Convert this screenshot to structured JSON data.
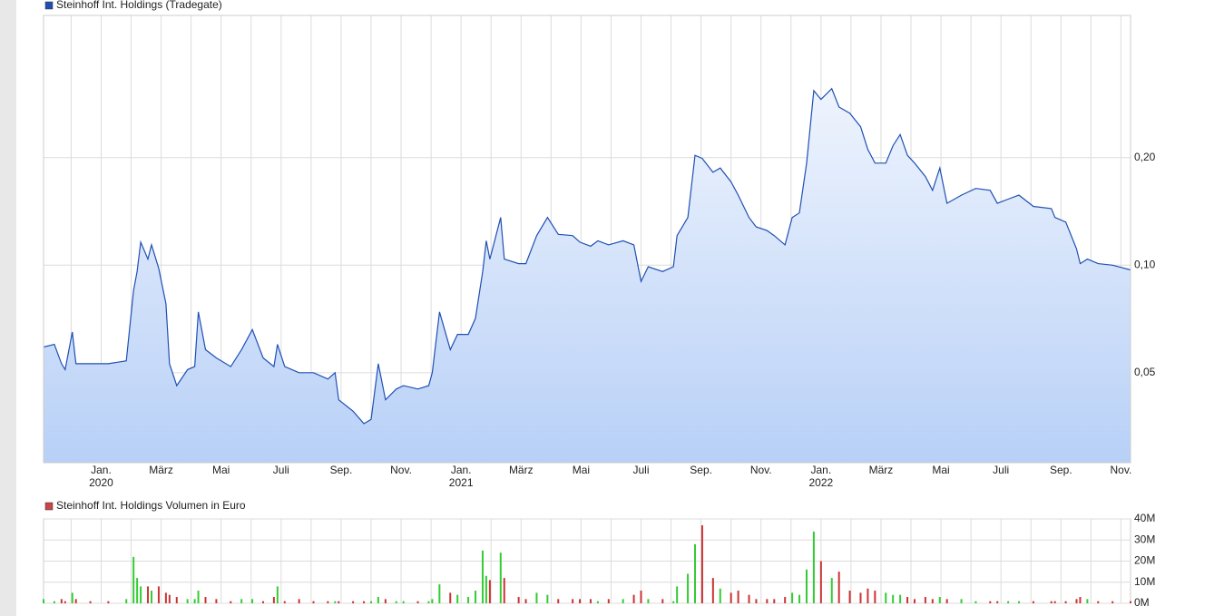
{
  "chart_data": [
    {
      "type": "area",
      "title": "Steinhoff Int. Holdings (Tradegate)",
      "log_scale": true,
      "grid": true,
      "series": [
        {
          "name": "Steinhoff Int. Holdings (Tradegate)",
          "color": "#1f4fb4",
          "fill_top": "#eef4fd",
          "fill_bottom": "#b8d0f7",
          "values": [
            0.059,
            0.06,
            0.053,
            0.051,
            0.065,
            0.053,
            0.053,
            0.053,
            0.054,
            0.085,
            0.096,
            0.116,
            0.104,
            0.114,
            0.098,
            0.078,
            0.053,
            0.046,
            0.051,
            0.052,
            0.074,
            0.058,
            0.055,
            0.052,
            0.058,
            0.066,
            0.055,
            0.052,
            0.06,
            0.052,
            0.05,
            0.05,
            0.048,
            0.05,
            0.042,
            0.039,
            0.036,
            0.037,
            0.053,
            0.042,
            0.045,
            0.046,
            0.045,
            0.046,
            0.05,
            0.074,
            0.058,
            0.064,
            0.064,
            0.071,
            0.096,
            0.117,
            0.104,
            0.136,
            0.104,
            0.101,
            0.101,
            0.121,
            0.136,
            0.122,
            0.121,
            0.116,
            0.113,
            0.117,
            0.114,
            0.117,
            0.114,
            0.09,
            0.099,
            0.096,
            0.099,
            0.121,
            0.136,
            0.203,
            0.199,
            0.182,
            0.187,
            0.171,
            0.157,
            0.136,
            0.128,
            0.125,
            0.121,
            0.114,
            0.136,
            0.14,
            0.193,
            0.308,
            0.291,
            0.312,
            0.277,
            0.266,
            0.244,
            0.211,
            0.193,
            0.193,
            0.216,
            0.232,
            0.203,
            0.193,
            0.177,
            0.162,
            0.187,
            0.149,
            0.157,
            0.164,
            0.162,
            0.149,
            0.153,
            0.157,
            0.146,
            0.144,
            0.136,
            0.132,
            0.111,
            0.101,
            0.104,
            0.101,
            0.1,
            0.097
          ]
        }
      ],
      "x": [
        2019.84,
        2019.87,
        2019.89,
        2019.9,
        2019.92,
        2019.93,
        2019.97,
        2020.02,
        2020.07,
        2020.09,
        2020.1,
        2020.11,
        2020.13,
        2020.14,
        2020.16,
        2020.18,
        2020.19,
        2020.21,
        2020.24,
        2020.26,
        2020.27,
        2020.29,
        2020.32,
        2020.36,
        2020.39,
        2020.42,
        2020.45,
        2020.48,
        2020.49,
        2020.51,
        2020.55,
        2020.59,
        2020.63,
        2020.65,
        2020.66,
        2020.7,
        2020.73,
        2020.75,
        2020.77,
        2020.79,
        2020.82,
        2020.84,
        2020.88,
        2020.91,
        2020.92,
        2020.94,
        2020.97,
        2020.99,
        2021.02,
        2021.04,
        2021.06,
        2021.07,
        2021.08,
        2021.11,
        2021.12,
        2021.16,
        2021.18,
        2021.21,
        2021.24,
        2021.27,
        2021.31,
        2021.33,
        2021.36,
        2021.38,
        2021.41,
        2021.45,
        2021.48,
        2021.5,
        2021.52,
        2021.56,
        2021.59,
        2021.6,
        2021.63,
        2021.65,
        2021.67,
        2021.7,
        2021.72,
        2021.75,
        2021.77,
        2021.8,
        2021.82,
        2021.85,
        2021.87,
        2021.9,
        2021.92,
        2021.94,
        2021.96,
        2021.98,
        2022.0,
        2022.03,
        2022.05,
        2022.08,
        2022.11,
        2022.13,
        2022.15,
        2022.18,
        2022.2,
        2022.22,
        2022.24,
        2022.26,
        2022.29,
        2022.31,
        2022.33,
        2022.35,
        2022.39,
        2022.43,
        2022.47,
        2022.49,
        2022.52,
        2022.55,
        2022.59,
        2022.64,
        2022.65,
        2022.68,
        2022.71,
        2022.72,
        2022.74,
        2022.77,
        2022.81,
        2022.86
      ],
      "xlim": [
        2019.84,
        2022.86
      ],
      "xticks": [
        {
          "value": 2020,
          "label": "Jan."
        },
        {
          "value": 2020.1667,
          "label": "März"
        },
        {
          "value": 2020.3333,
          "label": "Mai"
        },
        {
          "value": 2020.5,
          "label": "Juli"
        },
        {
          "value": 2020.6667,
          "label": "Sep."
        },
        {
          "value": 2020.8333,
          "label": "Nov."
        },
        {
          "value": 2021,
          "label": "Jan."
        },
        {
          "value": 2021.1667,
          "label": "März"
        },
        {
          "value": 2021.3333,
          "label": "Mai"
        },
        {
          "value": 2021.5,
          "label": "Juli"
        },
        {
          "value": 2021.6667,
          "label": "Sep."
        },
        {
          "value": 2021.8333,
          "label": "Nov."
        },
        {
          "value": 2022,
          "label": "Jan."
        },
        {
          "value": 2022.1667,
          "label": "März"
        },
        {
          "value": 2022.3333,
          "label": "Mai"
        },
        {
          "value": 2022.5,
          "label": "Juli"
        },
        {
          "value": 2022.6667,
          "label": "Sep."
        },
        {
          "value": 2022.8333,
          "label": "Nov."
        }
      ],
      "x_minor_gridlines": [
        2019.9167,
        2020.0833,
        2020.25,
        2020.4167,
        2020.5833,
        2020.75,
        2020.9167,
        2021.0833,
        2021.25,
        2021.4167,
        2021.5833,
        2021.75,
        2021.9167,
        2022.0833,
        2022.25,
        2022.4167,
        2022.5833,
        2022.75
      ],
      "year_labels": [
        2020,
        2021,
        2022
      ],
      "ylim": [
        0.028,
        0.5
      ],
      "yticks": [
        {
          "value": 0.05,
          "label": "0,05"
        },
        {
          "value": 0.1,
          "label": "0,10"
        },
        {
          "value": 0.2,
          "label": "0,20"
        }
      ]
    },
    {
      "type": "bar",
      "title": "Steinhoff Int. Holdings Volumen in Euro",
      "legend_color": "#c84646",
      "grid": true,
      "values": [
        2000000,
        1000000,
        2000000,
        1000000,
        5000000,
        2000000,
        1000000,
        1000000,
        2000000,
        22000000,
        12000000,
        8000000,
        8000000,
        6000000,
        8000000,
        5000000,
        4000000,
        3000000,
        2000000,
        2000000,
        6000000,
        3000000,
        2000000,
        1000000,
        2000000,
        2000000,
        1000000,
        3000000,
        8000000,
        1000000,
        2000000,
        1000000,
        1000000,
        1000000,
        1000000,
        1000000,
        1000000,
        1000000,
        3000000,
        2000000,
        1000000,
        1000000,
        1000000,
        1000000,
        2000000,
        9000000,
        5000000,
        4000000,
        3000000,
        6000000,
        25000000,
        13000000,
        11000000,
        24000000,
        12000000,
        3000000,
        2000000,
        5000000,
        4000000,
        2000000,
        2000000,
        2000000,
        2000000,
        1000000,
        2000000,
        2000000,
        4000000,
        6000000,
        2000000,
        2000000,
        1000000,
        8000000,
        14000000,
        28000000,
        37000000,
        12000000,
        7000000,
        5000000,
        6000000,
        4000000,
        2000000,
        2000000,
        2000000,
        3000000,
        5000000,
        4000000,
        16000000,
        34000000,
        20000000,
        12000000,
        15000000,
        6000000,
        5000000,
        7000000,
        6000000,
        5000000,
        4000000,
        4000000,
        3000000,
        2000000,
        3000000,
        2000000,
        3000000,
        2000000,
        2000000,
        1000000,
        1000000,
        1000000,
        1000000,
        1000000,
        1000000,
        1000000,
        1000000,
        1000000,
        2000000,
        3000000,
        2000000,
        1000000,
        1000000,
        1000000
      ],
      "bar_colors": [
        "#33cc33",
        "#33cc33",
        "#cc3333",
        "#cc3333",
        "#33cc33",
        "#cc3333",
        "#cc3333",
        "#cc3333",
        "#33cc33",
        "#33cc33",
        "#33cc33",
        "#33cc33",
        "#cc3333",
        "#33cc33",
        "#cc3333",
        "#cc3333",
        "#cc3333",
        "#cc3333",
        "#33cc33",
        "#33cc33",
        "#33cc33",
        "#cc3333",
        "#cc3333",
        "#cc3333",
        "#33cc33",
        "#33cc33",
        "#cc3333",
        "#cc3333",
        "#33cc33",
        "#cc3333",
        "#cc3333",
        "#cc3333",
        "#cc3333",
        "#33cc33",
        "#cc3333",
        "#cc3333",
        "#cc3333",
        "#33cc33",
        "#33cc33",
        "#cc3333",
        "#33cc33",
        "#33cc33",
        "#cc3333",
        "#33cc33",
        "#33cc33",
        "#33cc33",
        "#cc3333",
        "#33cc33",
        "#33cc33",
        "#33cc33",
        "#33cc33",
        "#33cc33",
        "#cc3333",
        "#33cc33",
        "#cc3333",
        "#cc3333",
        "#cc3333",
        "#33cc33",
        "#33cc33",
        "#cc3333",
        "#cc3333",
        "#cc3333",
        "#cc3333",
        "#33cc33",
        "#cc3333",
        "#33cc33",
        "#cc3333",
        "#cc3333",
        "#33cc33",
        "#cc3333",
        "#33cc33",
        "#33cc33",
        "#33cc33",
        "#33cc33",
        "#cc3333",
        "#cc3333",
        "#33cc33",
        "#cc3333",
        "#cc3333",
        "#cc3333",
        "#cc3333",
        "#cc3333",
        "#cc3333",
        "#cc3333",
        "#33cc33",
        "#33cc33",
        "#33cc33",
        "#33cc33",
        "#cc3333",
        "#33cc33",
        "#cc3333",
        "#cc3333",
        "#cc3333",
        "#cc3333",
        "#cc3333",
        "#33cc33",
        "#33cc33",
        "#33cc33",
        "#cc3333",
        "#cc3333",
        "#cc3333",
        "#cc3333",
        "#33cc33",
        "#cc3333",
        "#33cc33",
        "#33cc33",
        "#cc3333",
        "#cc3333",
        "#33cc33",
        "#33cc33",
        "#cc3333",
        "#cc3333",
        "#cc3333",
        "#cc3333",
        "#cc3333",
        "#cc3333",
        "#33cc33",
        "#cc3333",
        "#cc3333",
        "#cc3333"
      ],
      "ylim": [
        0,
        40000000
      ],
      "yticks": [
        {
          "value": 0,
          "label": "0M"
        },
        {
          "value": 10000000,
          "label": "10M"
        },
        {
          "value": 20000000,
          "label": "20M"
        },
        {
          "value": 30000000,
          "label": "30M"
        },
        {
          "value": 40000000,
          "label": "40M"
        }
      ]
    }
  ]
}
